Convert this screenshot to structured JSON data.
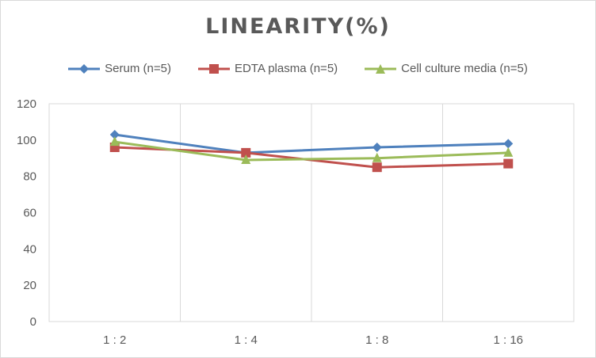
{
  "chart_data": {
    "type": "line",
    "title": "LINEARITY(%)",
    "categories": [
      "1:2",
      "1:4",
      "1:8",
      "1:16"
    ],
    "ylim": [
      0,
      120
    ],
    "yticks": [
      0,
      20,
      40,
      60,
      80,
      100,
      120
    ],
    "grid": "vertical",
    "legend_position": "top",
    "series": [
      {
        "name": "Serum (n=5)",
        "values": [
          103,
          93,
          96,
          98
        ],
        "color": "#4f81bd",
        "marker": "diamond"
      },
      {
        "name": "EDTA plasma (n=5)",
        "values": [
          96,
          93,
          85,
          87
        ],
        "color": "#c0504d",
        "marker": "square"
      },
      {
        "name": "Cell culture media (n=5)",
        "values": [
          99,
          89,
          90,
          93
        ],
        "color": "#9bbb59",
        "marker": "triangle"
      }
    ]
  }
}
